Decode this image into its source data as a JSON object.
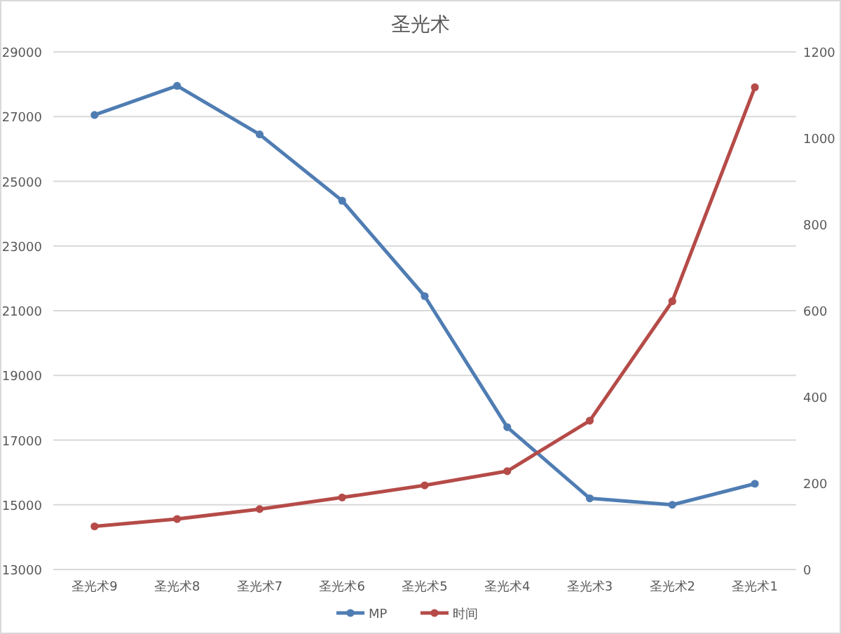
{
  "chart_data": {
    "type": "line",
    "title": "圣光术",
    "categories": [
      "圣光术9",
      "圣光术8",
      "圣光术7",
      "圣光术6",
      "圣光术5",
      "圣光术4",
      "圣光术3",
      "圣光术2",
      "圣光术1"
    ],
    "series": [
      {
        "name": "MP",
        "color": "#4f7db3",
        "values": [
          27050,
          27950,
          26450,
          24400,
          21450,
          17400,
          15200,
          15000,
          15650
        ]
      },
      {
        "name": "时间",
        "color": "#b54b48",
        "axis": "y2",
        "values": [
          100,
          117,
          140,
          167,
          195,
          228,
          345,
          622,
          1118
        ]
      }
    ],
    "ylim": [
      13000,
      29000
    ],
    "yticks": [
      13000,
      15000,
      17000,
      19000,
      21000,
      23000,
      25000,
      27000,
      29000
    ],
    "y2lim": [
      0,
      1200
    ],
    "y2ticks": [
      0,
      200,
      400,
      600,
      800,
      1000,
      1200
    ],
    "grid": "y",
    "legend": "bottom",
    "marker": "circle",
    "line_style": "solid"
  }
}
